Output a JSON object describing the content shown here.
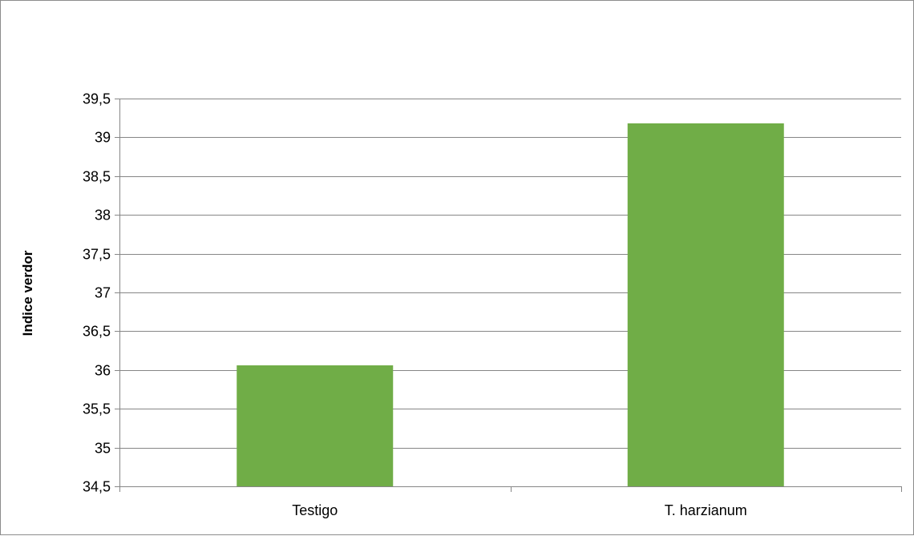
{
  "chart_data": {
    "type": "bar",
    "categories": [
      "Testigo",
      "T. harzianum"
    ],
    "values": [
      36.06,
      39.18
    ],
    "ylabel": "Indice verdor",
    "xlabel": "",
    "ylim": [
      34.5,
      39.5
    ],
    "yticks": [
      "34,5",
      "35",
      "35,5",
      "36",
      "36,5",
      "37",
      "37,5",
      "38",
      "38,5",
      "39",
      "39,5"
    ],
    "ytick_values": [
      34.5,
      35,
      35.5,
      36,
      36.5,
      37,
      37.5,
      38,
      38.5,
      39,
      39.5
    ],
    "grid": true,
    "bar_color": "#70ad47",
    "gridline_color": "#868686"
  }
}
